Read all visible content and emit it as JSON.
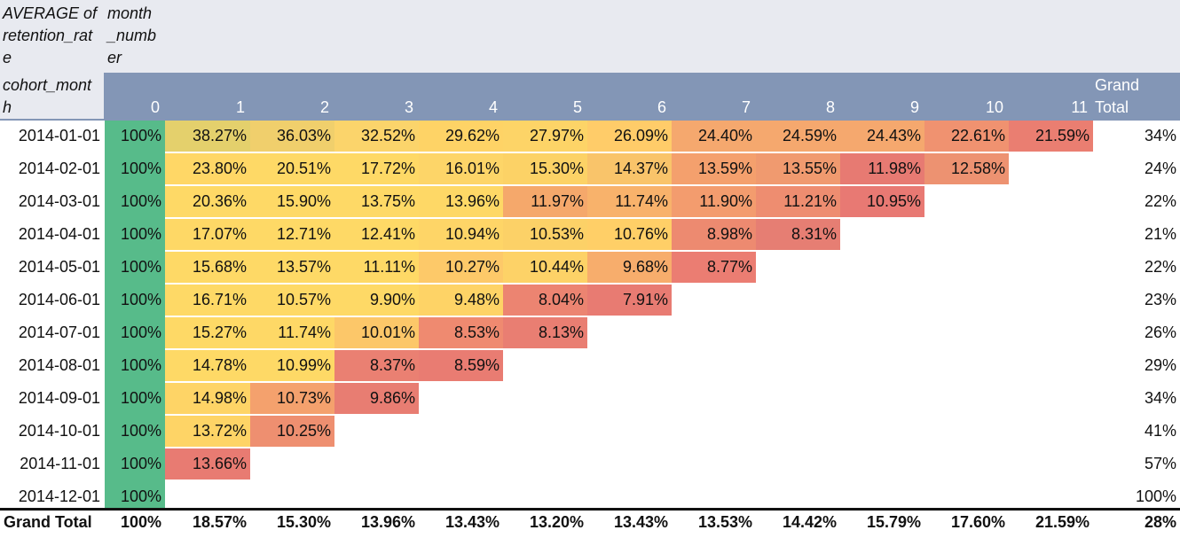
{
  "pivot": {
    "corner_value_label": "AVERAGE of\nretention_rat\ne",
    "column_field_label": "month\n_numb\ner",
    "row_field_label": "cohort_mont\nh",
    "grand_total_header": "Grand\nTotal",
    "column_headers": [
      "0",
      "1",
      "2",
      "3",
      "4",
      "5",
      "6",
      "7",
      "8",
      "9",
      "10",
      "11"
    ],
    "rows": [
      {
        "label": "2014-01-01",
        "values": [
          "100%",
          "38.27%",
          "36.03%",
          "32.52%",
          "29.62%",
          "27.97%",
          "26.09%",
          "24.40%",
          "24.59%",
          "24.43%",
          "22.61%",
          "21.59%"
        ],
        "total": "34%"
      },
      {
        "label": "2014-02-01",
        "values": [
          "100%",
          "23.80%",
          "20.51%",
          "17.72%",
          "16.01%",
          "15.30%",
          "14.37%",
          "13.59%",
          "13.55%",
          "11.98%",
          "12.58%"
        ],
        "total": "24%"
      },
      {
        "label": "2014-03-01",
        "values": [
          "100%",
          "20.36%",
          "15.90%",
          "13.75%",
          "13.96%",
          "11.97%",
          "11.74%",
          "11.90%",
          "11.21%",
          "10.95%"
        ],
        "total": "22%"
      },
      {
        "label": "2014-04-01",
        "values": [
          "100%",
          "17.07%",
          "12.71%",
          "12.41%",
          "10.94%",
          "10.53%",
          "10.76%",
          "8.98%",
          "8.31%"
        ],
        "total": "21%"
      },
      {
        "label": "2014-05-01",
        "values": [
          "100%",
          "15.68%",
          "13.57%",
          "11.11%",
          "10.27%",
          "10.44%",
          "9.68%",
          "8.77%"
        ],
        "total": "22%"
      },
      {
        "label": "2014-06-01",
        "values": [
          "100%",
          "16.71%",
          "10.57%",
          "9.90%",
          "9.48%",
          "8.04%",
          "7.91%"
        ],
        "total": "23%"
      },
      {
        "label": "2014-07-01",
        "values": [
          "100%",
          "15.27%",
          "11.74%",
          "10.01%",
          "8.53%",
          "8.13%"
        ],
        "total": "26%"
      },
      {
        "label": "2014-08-01",
        "values": [
          "100%",
          "14.78%",
          "10.99%",
          "8.37%",
          "8.59%"
        ],
        "total": "29%"
      },
      {
        "label": "2014-09-01",
        "values": [
          "100%",
          "14.98%",
          "10.73%",
          "9.86%"
        ],
        "total": "34%"
      },
      {
        "label": "2014-10-01",
        "values": [
          "100%",
          "13.72%",
          "10.25%"
        ],
        "total": "41%"
      },
      {
        "label": "2014-11-01",
        "values": [
          "100%",
          "13.66%"
        ],
        "total": "57%"
      },
      {
        "label": "2014-12-01",
        "values": [
          "100%"
        ],
        "total": "100%"
      }
    ],
    "grand_total_row": {
      "label": "Grand Total",
      "values": [
        "100%",
        "18.57%",
        "15.30%",
        "13.96%",
        "13.43%",
        "13.20%",
        "13.43%",
        "13.53%",
        "14.42%",
        "15.79%",
        "17.60%",
        "21.59%"
      ],
      "total": "28%"
    },
    "colors": {
      "header_top_bg": "#e8eaf0",
      "header_band_bg": "#8396b6",
      "column_zero_fill": "#57bb8a",
      "scale_high": "#fed966",
      "scale_low": "#e67c73"
    },
    "cell_colors": [
      [
        null,
        "#e4d06c",
        "#f0cf6c",
        "#fbd46b",
        "#fed366",
        "#fdd467",
        "#ffcc69",
        "#f5a86e",
        "#f5a86e",
        "#f5a86e",
        "#f09270",
        "#ea7e71"
      ],
      [
        null,
        "#ffd766",
        "#fed966",
        "#fed966",
        "#fdd568",
        "#fcd266",
        "#f9c46a",
        "#f4a06d",
        "#f09a6f",
        "#e77a72",
        "#ed9271"
      ],
      [
        null,
        "#fed966",
        "#fed966",
        "#fed966",
        "#fed866",
        "#f5a86b",
        "#f8b26b",
        "#f39c6e",
        "#ee8d70",
        "#e87973"
      ],
      [
        null,
        "#fed866",
        "#fed966",
        "#fed966",
        "#fed567",
        "#fcd167",
        "#ffcf67",
        "#ed8a70",
        "#e67e73"
      ],
      [
        null,
        "#fed966",
        "#fed966",
        "#fed966",
        "#fdc969",
        "#fdd267",
        "#f7ad6c",
        "#eb7d72"
      ],
      [
        null,
        "#fed966",
        "#fed966",
        "#fed966",
        "#fed366",
        "#ec8471",
        "#e87b72"
      ],
      [
        null,
        "#fed966",
        "#fed866",
        "#fcc769",
        "#ef8a70",
        "#e97e72"
      ],
      [
        null,
        "#fed966",
        "#fed966",
        "#ea8072",
        "#e97c72"
      ],
      [
        null,
        "#fed466",
        "#f4a16d",
        "#e87d72"
      ],
      [
        null,
        "#fed466",
        "#ee8f70"
      ],
      [
        null,
        "#e87b72"
      ],
      [
        null
      ]
    ]
  }
}
